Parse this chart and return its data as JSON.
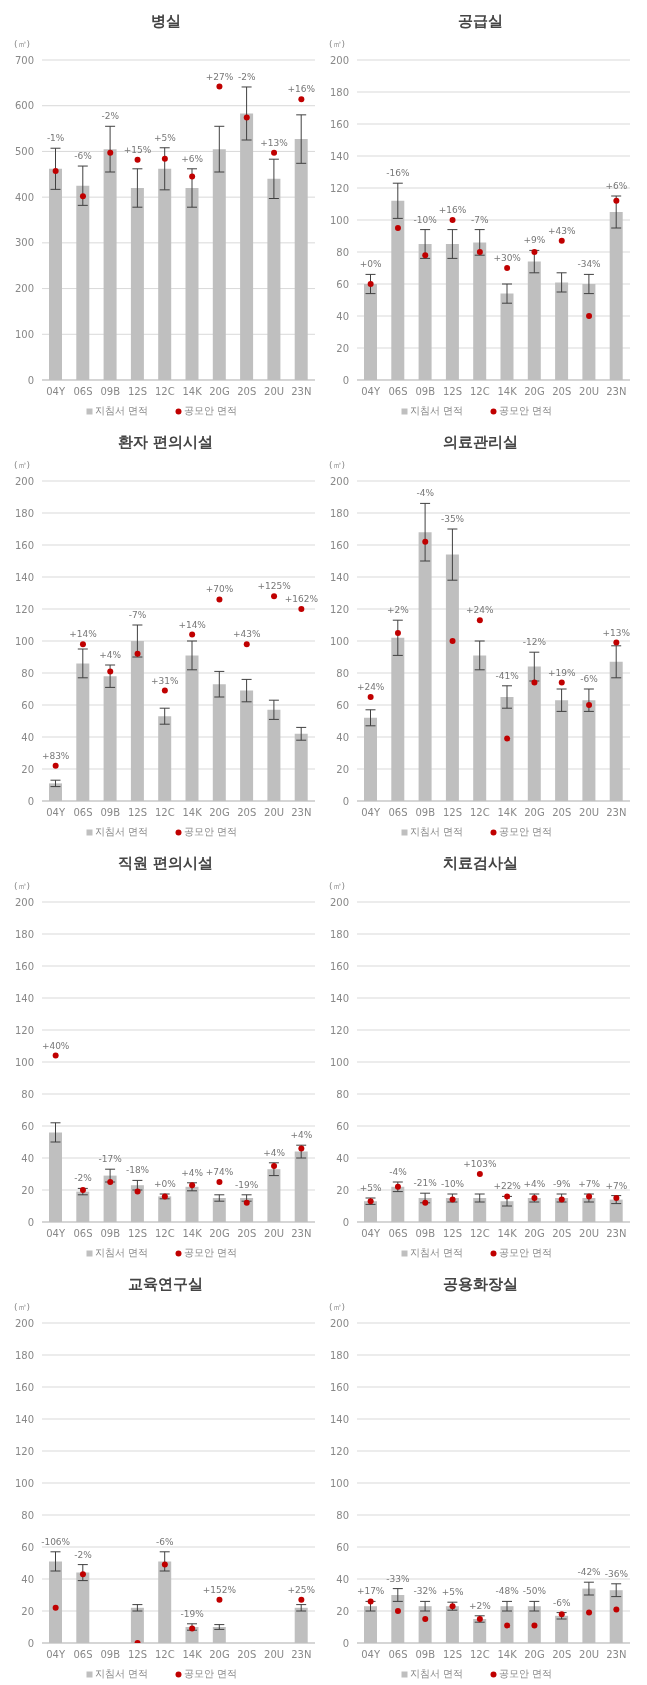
{
  "chart_data": [
    {
      "type": "bar",
      "title": "병실",
      "ylabel": "(㎡)",
      "categories": [
        "04Y",
        "06S",
        "09B",
        "12S",
        "12C",
        "14K",
        "20G",
        "20S",
        "20U",
        "23N"
      ],
      "series": [
        {
          "name": "지침서 면적",
          "color": "#bfbfbf",
          "values": [
            462,
            425,
            505,
            420,
            462,
            420,
            505,
            583,
            440,
            527
          ],
          "errors": [
            45,
            43,
            50,
            42,
            46,
            42,
            50,
            58,
            43,
            53
          ]
        },
        {
          "name": "공모안 면적",
          "type": "scatter",
          "color": "#c00000",
          "values": [
            457,
            402,
            497,
            482,
            484,
            445,
            642,
            574,
            497,
            614
          ]
        }
      ],
      "ylim": [
        0,
        700
      ],
      "yticks": [
        0,
        100,
        200,
        300,
        400,
        500,
        600,
        700
      ],
      "grid": "y",
      "legend": "bottom",
      "marker": "circle",
      "annotations": [
        "-1%",
        "-6%",
        "-2%",
        "+15%",
        "+5%",
        "+6%",
        "+27%",
        "-2%",
        "+13%",
        "+16%"
      ]
    },
    {
      "type": "bar",
      "title": "공급실",
      "ylabel": "(㎡)",
      "categories": [
        "04Y",
        "06S",
        "09B",
        "12S",
        "12C",
        "14K",
        "20G",
        "20S",
        "20U",
        "23N"
      ],
      "series": [
        {
          "name": "지침서 면적",
          "color": "#bfbfbf",
          "values": [
            60,
            112,
            85,
            85,
            86,
            54,
            74,
            61,
            60,
            105
          ],
          "errors": [
            6,
            11,
            9,
            9,
            8,
            6,
            7,
            6,
            6,
            10
          ]
        },
        {
          "name": "공모안 면적",
          "type": "scatter",
          "color": "#c00000",
          "values": [
            60,
            95,
            78,
            100,
            80,
            70,
            80,
            87,
            40,
            112
          ]
        }
      ],
      "ylim": [
        0,
        200
      ],
      "yticks": [
        0,
        20,
        40,
        60,
        80,
        100,
        120,
        140,
        160,
        180,
        200
      ],
      "grid": "y",
      "legend": "bottom",
      "marker": "circle",
      "annotations": [
        "+0%",
        "-16%",
        "-10%",
        "+16%",
        "-7%",
        "+30%",
        "+9%",
        "+43%",
        "-34%",
        "+6%"
      ]
    },
    {
      "type": "bar",
      "title": "환자 편의시설",
      "ylabel": "(㎡)",
      "categories": [
        "04Y",
        "06S",
        "09B",
        "12S",
        "12C",
        "14K",
        "20G",
        "20S",
        "20U",
        "23N"
      ],
      "series": [
        {
          "name": "지침서 면적",
          "color": "#bfbfbf",
          "values": [
            11,
            86,
            78,
            100,
            53,
            91,
            73,
            69,
            57,
            42
          ],
          "errors": [
            2,
            9,
            7,
            10,
            5,
            9,
            8,
            7,
            6,
            4
          ]
        },
        {
          "name": "공모안 면적",
          "type": "scatter",
          "color": "#c00000",
          "values": [
            22,
            98,
            81,
            92,
            69,
            104,
            126,
            98,
            128,
            120
          ]
        }
      ],
      "ylim": [
        0,
        200
      ],
      "yticks": [
        0,
        20,
        40,
        60,
        80,
        100,
        120,
        140,
        160,
        180,
        200
      ],
      "grid": "y",
      "legend": "bottom",
      "marker": "circle",
      "annotations": [
        "+83%",
        "+14%",
        "+4%",
        "-7%",
        "+31%",
        "+14%",
        "+70%",
        "+43%",
        "+125%",
        "+162%"
      ]
    },
    {
      "type": "bar",
      "title": "의료관리실",
      "ylabel": "(㎡)",
      "categories": [
        "04Y",
        "06S",
        "09B",
        "12S",
        "12C",
        "14K",
        "20G",
        "20S",
        "20U",
        "23N"
      ],
      "series": [
        {
          "name": "지침서 면적",
          "color": "#bfbfbf",
          "values": [
            52,
            102,
            168,
            154,
            91,
            65,
            84,
            63,
            63,
            87
          ],
          "errors": [
            5,
            11,
            18,
            16,
            9,
            7,
            9,
            7,
            7,
            10
          ]
        },
        {
          "name": "공모안 면적",
          "type": "scatter",
          "color": "#c00000",
          "values": [
            65,
            105,
            162,
            100,
            113,
            39,
            74,
            74,
            60,
            99
          ]
        }
      ],
      "ylim": [
        0,
        200
      ],
      "yticks": [
        0,
        20,
        40,
        60,
        80,
        100,
        120,
        140,
        160,
        180,
        200
      ],
      "grid": "y",
      "legend": "bottom",
      "marker": "circle",
      "annotations": [
        "+24%",
        "+2%",
        "-4%",
        "-35%",
        "+24%",
        "-41%",
        "-12%",
        "+19%",
        "-6%",
        "+13%"
      ]
    },
    {
      "type": "bar",
      "title": "직원 편의시설",
      "ylabel": "(㎡)",
      "categories": [
        "04Y",
        "06S",
        "09B",
        "12S",
        "12C",
        "14K",
        "20G",
        "20S",
        "20U",
        "23N"
      ],
      "series": [
        {
          "name": "지침서 면적",
          "color": "#bfbfbf",
          "values": [
            56,
            19,
            29,
            23,
            16,
            22,
            15,
            15,
            33,
            44
          ],
          "errors": [
            6,
            2,
            4,
            3,
            1.5,
            2.5,
            2,
            2,
            4,
            4
          ]
        },
        {
          "name": "공모안 면적",
          "type": "scatter",
          "color": "#c00000",
          "values": [
            104,
            20,
            25,
            19,
            16,
            23,
            25,
            12,
            35,
            46
          ]
        }
      ],
      "ylim": [
        0,
        200
      ],
      "yticks": [
        0,
        20,
        40,
        60,
        80,
        100,
        120,
        140,
        160,
        180,
        200
      ],
      "grid": "y",
      "legend": "bottom",
      "marker": "circle",
      "annotations": [
        "+40%",
        "-2%",
        "-17%",
        "-18%",
        "+0%",
        "+4%",
        "+74%",
        "-19%",
        "+4%",
        "+4%"
      ]
    },
    {
      "type": "bar",
      "title": "치료검사실",
      "ylabel": "(㎡)",
      "categories": [
        "04Y",
        "06S",
        "09B",
        "12S",
        "12C",
        "14K",
        "20G",
        "20S",
        "20U",
        "23N"
      ],
      "series": [
        {
          "name": "지침서 면적",
          "color": "#bfbfbf",
          "values": [
            13,
            22,
            15,
            15,
            15,
            13,
            15,
            15,
            15,
            14
          ],
          "errors": [
            2,
            3,
            3,
            2.5,
            2.5,
            3,
            2.5,
            2.5,
            2.5,
            2.5
          ]
        },
        {
          "name": "공모안 면적",
          "type": "scatter",
          "color": "#c00000",
          "values": [
            13,
            22,
            12,
            14,
            30,
            16,
            15,
            14,
            16,
            15
          ]
        }
      ],
      "ylim": [
        0,
        200
      ],
      "yticks": [
        0,
        20,
        40,
        60,
        80,
        100,
        120,
        140,
        160,
        180,
        200
      ],
      "grid": "y",
      "legend": "bottom",
      "marker": "circle",
      "annotations": [
        "+5%",
        "-4%",
        "-21%",
        "-10%",
        "+103%",
        "+22%",
        "+4%",
        "-9%",
        "+7%",
        "+7%"
      ]
    },
    {
      "type": "bar",
      "title": "교육연구실",
      "ylabel": "(㎡)",
      "categories": [
        "04Y",
        "06S",
        "09B",
        "12S",
        "12C",
        "14K",
        "20G",
        "20S",
        "20U",
        "23N"
      ],
      "series": [
        {
          "name": "지침서 면적",
          "color": "#bfbfbf",
          "values": [
            51,
            44,
            null,
            22,
            51,
            10,
            10,
            null,
            null,
            22
          ],
          "errors": [
            6,
            5,
            null,
            2,
            6,
            2,
            1.5,
            null,
            null,
            2
          ]
        },
        {
          "name": "공모안 면적",
          "type": "scatter",
          "color": "#c00000",
          "values": [
            22,
            43,
            null,
            0,
            49,
            9,
            27,
            null,
            null,
            27
          ]
        }
      ],
      "ylim": [
        0,
        200
      ],
      "yticks": [
        0,
        20,
        40,
        60,
        80,
        100,
        120,
        140,
        160,
        180,
        200
      ],
      "grid": "y",
      "legend": "bottom",
      "marker": "circle",
      "annotations": [
        "-106%",
        "-2%",
        "-6%",
        "-19%",
        "+152%",
        "+25%"
      ]
    },
    {
      "type": "bar",
      "title": "공용화장실",
      "ylabel": "(㎡)",
      "categories": [
        "04Y",
        "06S",
        "09B",
        "12S",
        "12C",
        "14K",
        "20G",
        "20S",
        "20U",
        "23N"
      ],
      "series": [
        {
          "name": "지침서 면적",
          "color": "#bfbfbf",
          "values": [
            23,
            30,
            23,
            23,
            15,
            23,
            23,
            17,
            34,
            33
          ],
          "errors": [
            3,
            4,
            3,
            2.5,
            2,
            3,
            3,
            2,
            4,
            4
          ]
        },
        {
          "name": "공모안 면적",
          "type": "scatter",
          "color": "#c00000",
          "values": [
            26,
            20,
            15,
            23,
            15,
            11,
            11,
            18,
            19,
            21
          ]
        }
      ],
      "ylim": [
        0,
        200
      ],
      "yticks": [
        0,
        20,
        40,
        60,
        80,
        100,
        120,
        140,
        160,
        180,
        200
      ],
      "grid": "y",
      "legend": "bottom",
      "marker": "circle",
      "annotations": [
        "+17%",
        "-33%",
        "-32%",
        "+5%",
        "+2%",
        "-48%",
        "-50%",
        "-6%",
        "-42%",
        "-36%"
      ]
    }
  ]
}
